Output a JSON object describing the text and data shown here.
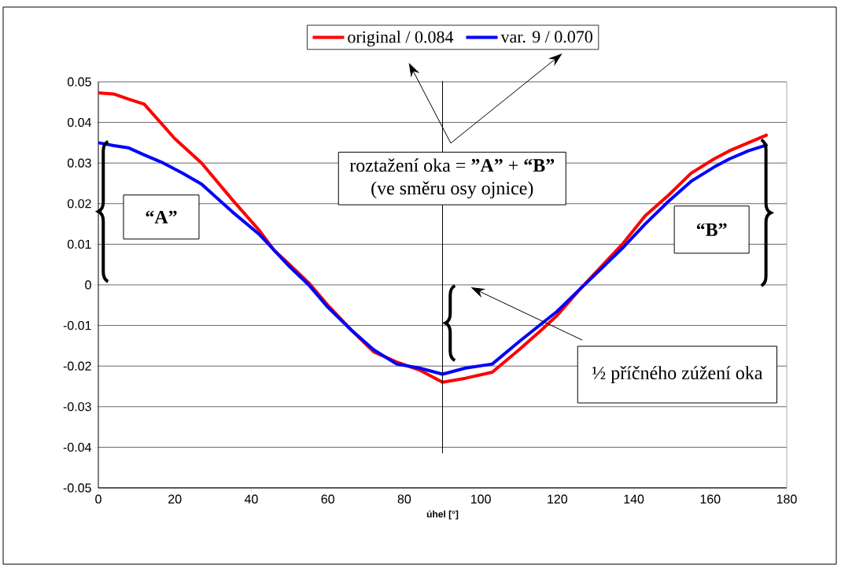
{
  "chart_data": {
    "type": "line",
    "xlabel": "úhel [°]",
    "xlim": [
      0,
      180
    ],
    "xticks": [
      0,
      20,
      40,
      60,
      80,
      100,
      120,
      140,
      160,
      180
    ],
    "ylim": [
      -0.05,
      0.05
    ],
    "yticks": [
      -0.05,
      -0.04,
      -0.03,
      -0.02,
      -0.01,
      0,
      0.01,
      0.02,
      0.03,
      0.04,
      0.05
    ],
    "grid": "y",
    "legend": "top",
    "marker": "none",
    "line_style": "solid",
    "series": [
      {
        "name": "original / 0.084",
        "color": "#ff0000",
        "x": [
          0,
          4,
          8,
          12,
          20,
          27,
          35,
          42,
          46,
          50,
          55,
          60,
          66,
          72,
          78,
          84,
          90,
          96,
          103,
          110,
          116,
          120,
          126,
          131,
          137,
          143,
          149,
          155,
          161,
          165,
          170,
          175
        ],
        "values": [
          0.0473,
          0.047,
          0.0457,
          0.0445,
          0.036,
          0.03,
          0.021,
          0.0135,
          0.0085,
          0.005,
          0.0005,
          -0.005,
          -0.011,
          -0.0165,
          -0.019,
          -0.021,
          -0.024,
          -0.023,
          -0.0215,
          -0.016,
          -0.011,
          -0.0075,
          -0.001,
          0.004,
          0.01,
          0.017,
          0.022,
          0.0275,
          0.031,
          0.033,
          0.035,
          0.037
        ]
      },
      {
        "name": "var. 9 / 0.070",
        "color": "#0000ff",
        "x": [
          0,
          4,
          8,
          12,
          17,
          22,
          27,
          35,
          42,
          46,
          50,
          55,
          60,
          66,
          72,
          78,
          84,
          90,
          96,
          103,
          110,
          116,
          120,
          126,
          131,
          137,
          143,
          149,
          155,
          161,
          165,
          170,
          175
        ],
        "values": [
          0.035,
          0.0343,
          0.0337,
          0.032,
          0.03,
          0.0275,
          0.0248,
          0.018,
          0.0125,
          0.0085,
          0.0045,
          0,
          -0.0055,
          -0.011,
          -0.016,
          -0.0195,
          -0.0205,
          -0.022,
          -0.0205,
          -0.0195,
          -0.014,
          -0.0095,
          -0.0065,
          -0.001,
          0.0035,
          0.009,
          0.015,
          0.0205,
          0.0255,
          0.029,
          0.031,
          0.033,
          0.0345
        ]
      }
    ],
    "ref_lines": [
      {
        "axis": "x",
        "value": 90
      }
    ],
    "annotations": [
      "roztažení oka = **”A”** + **“B”**",
      "(ve směru osy ojnice)",
      "“A”",
      "“B”",
      "½ příčného zúžení oka"
    ]
  }
}
